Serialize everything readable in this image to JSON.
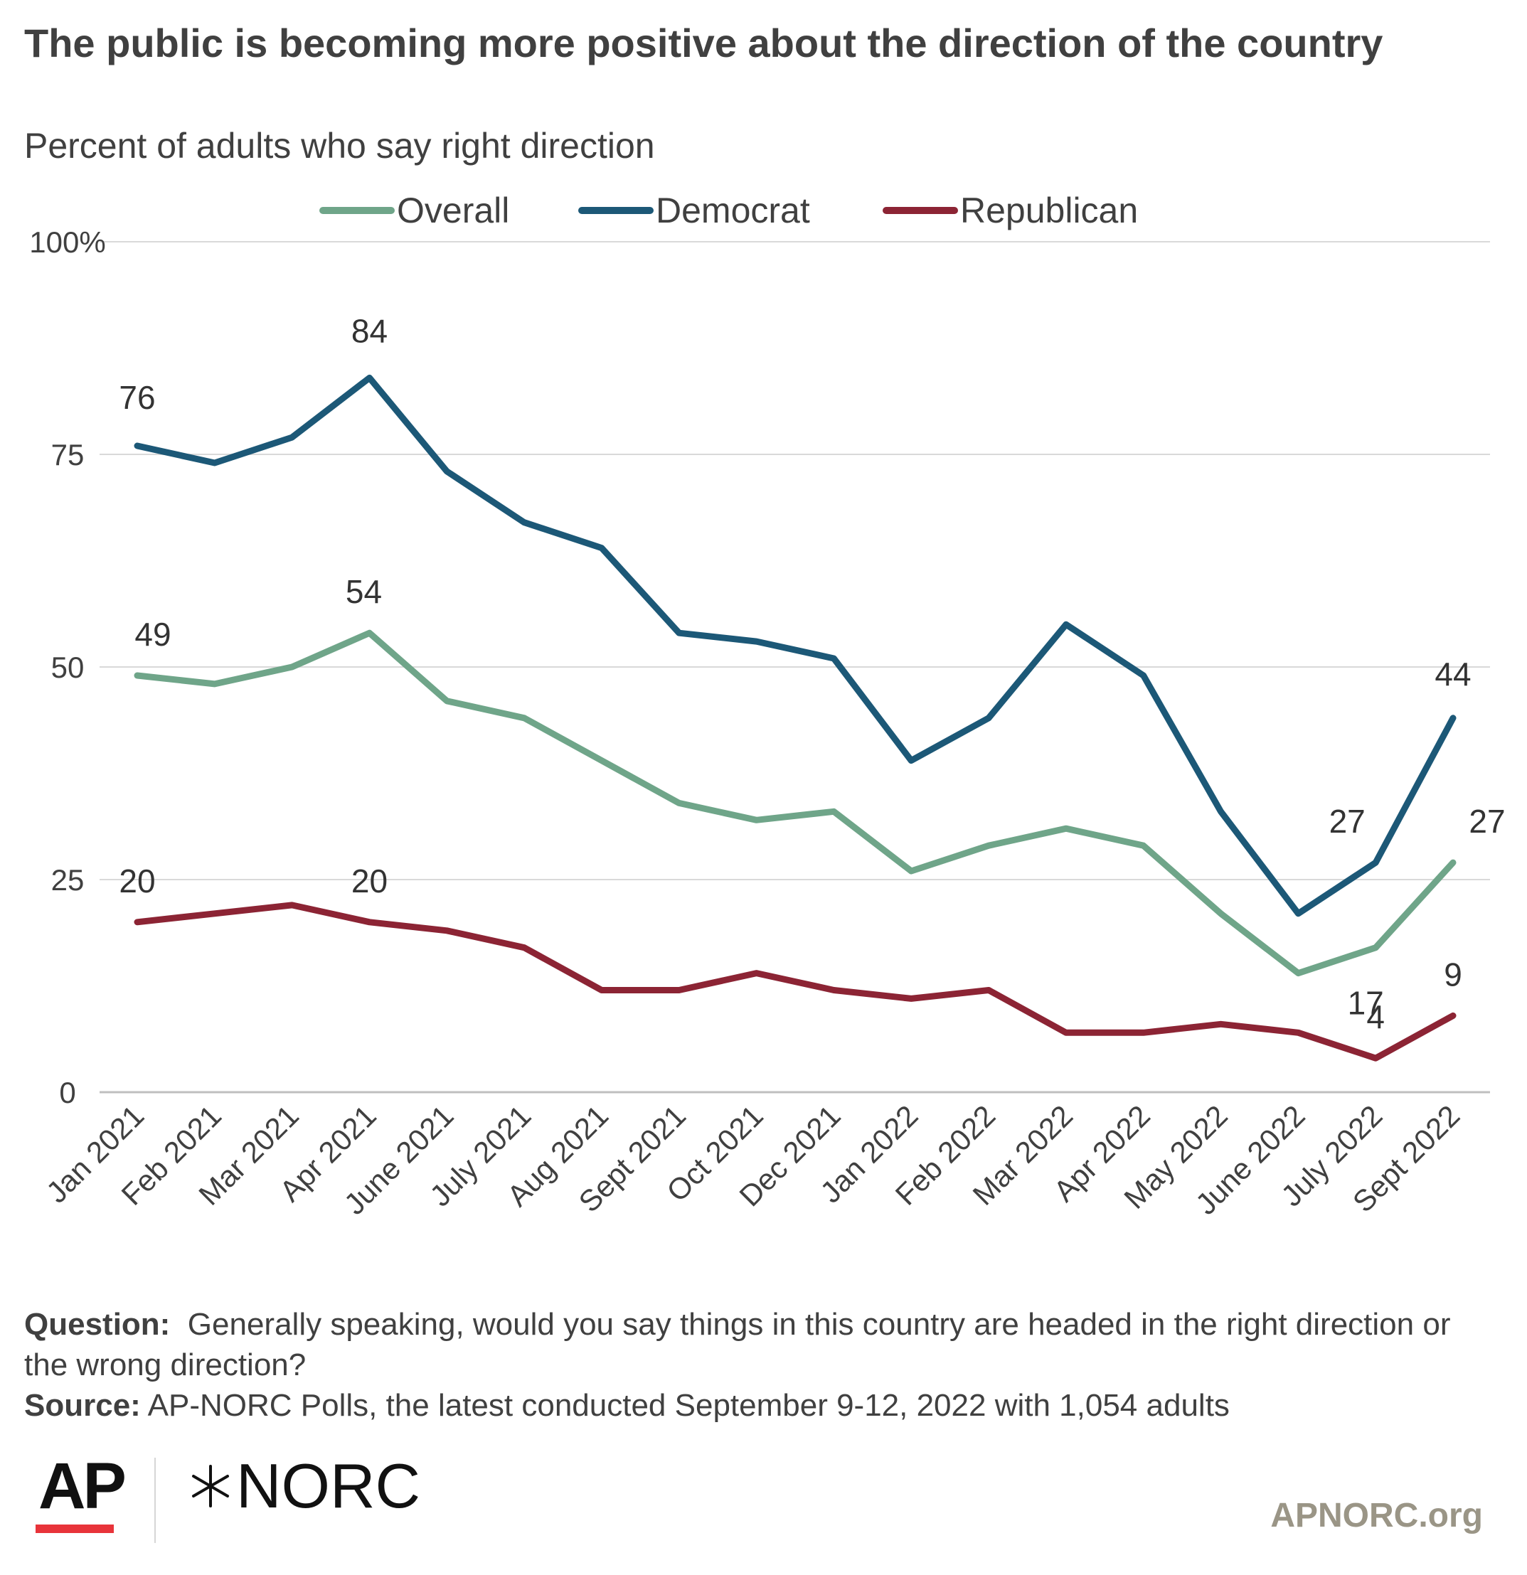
{
  "header": {
    "title": "The public is becoming more positive about the direction of the country",
    "subtitle": "Percent of adults who say right direction"
  },
  "chart_data": {
    "type": "line",
    "categories": [
      "Jan 2021",
      "Feb 2021",
      "Mar 2021",
      "Apr 2021",
      "June 2021",
      "July 2021",
      "Aug 2021",
      "Sept 2021",
      "Oct 2021",
      "Dec 2021",
      "Jan 2022",
      "Feb 2022",
      "Mar 2022",
      "Apr 2022",
      "May 2022",
      "June 2022",
      "July 2022",
      "Sept 2022"
    ],
    "series": [
      {
        "name": "Overall",
        "color": "#6fa589",
        "values": [
          49,
          48,
          50,
          54,
          46,
          44,
          39,
          34,
          32,
          33,
          26,
          29,
          31,
          29,
          21,
          14,
          17,
          27
        ]
      },
      {
        "name": "Democrat",
        "color": "#1c5877",
        "values": [
          76,
          74,
          77,
          84,
          73,
          67,
          64,
          54,
          53,
          51,
          39,
          44,
          55,
          49,
          33,
          21,
          27,
          44
        ]
      },
      {
        "name": "Republican",
        "color": "#8c2434",
        "values": [
          20,
          21,
          22,
          20,
          19,
          17,
          12,
          12,
          14,
          12,
          11,
          12,
          7,
          7,
          8,
          7,
          4,
          9
        ]
      }
    ],
    "data_labels": [
      {
        "series": "Democrat",
        "index": 0,
        "text": "76"
      },
      {
        "series": "Democrat",
        "index": 3,
        "text": "84"
      },
      {
        "series": "Democrat",
        "index": 16,
        "text": "27"
      },
      {
        "series": "Democrat",
        "index": 17,
        "text": "44"
      },
      {
        "series": "Overall",
        "index": 0,
        "text": "49"
      },
      {
        "series": "Overall",
        "index": 3,
        "text": "54"
      },
      {
        "series": "Overall",
        "index": 16,
        "text": "17"
      },
      {
        "series": "Overall",
        "index": 17,
        "text": "27"
      },
      {
        "series": "Republican",
        "index": 0,
        "text": "20"
      },
      {
        "series": "Republican",
        "index": 3,
        "text": "20"
      },
      {
        "series": "Republican",
        "index": 16,
        "text": "4"
      },
      {
        "series": "Republican",
        "index": 17,
        "text": "9"
      }
    ],
    "y_ticks": [
      "0",
      "25",
      "50",
      "75",
      "100%"
    ],
    "y_tick_values": [
      0,
      25,
      50,
      75,
      100
    ],
    "ylim": [
      0,
      100
    ],
    "grid": true,
    "legend_position": "top"
  },
  "footer": {
    "question_label": "Question:",
    "question_text": "Generally speaking, would you say things in this country are headed in the right direction or the wrong direction?",
    "source_label": "Source:",
    "source_text": "AP-NORC Polls, the latest conducted September 9-12, 2022 with 1,054 adults",
    "ap_logo": "AP",
    "norc_logo": "NORC",
    "url": "APNORC.org"
  },
  "colors": {
    "ap_red": "#e8343a",
    "url_gray": "#9a9586",
    "gridline": "#d9d9d9",
    "axis": "#bfbfbf"
  }
}
